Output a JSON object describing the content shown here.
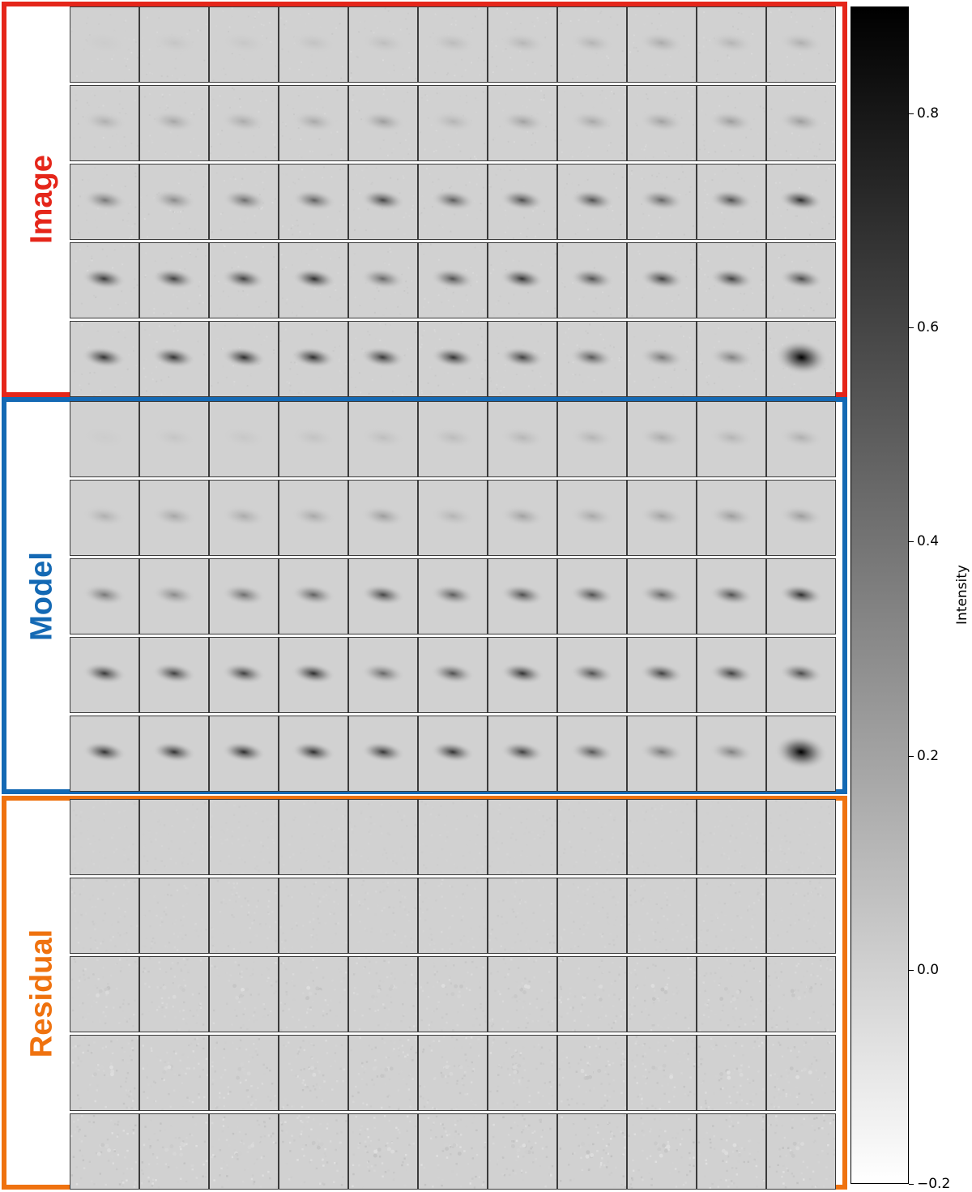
{
  "chart_data": {
    "type": "heatmap",
    "description_type": "image-grid",
    "grid": {
      "rows_per_panel": 5,
      "columns": 11
    },
    "panels": [
      {
        "name": "Image",
        "label": "Image",
        "color": "#e5261a",
        "kind": "image"
      },
      {
        "name": "Model",
        "label": "Model",
        "color": "#1469b4",
        "kind": "model"
      },
      {
        "name": "Residual",
        "label": "Residual",
        "color": "#ef720f",
        "kind": "residual"
      }
    ],
    "peak_intensity": [
      [
        0.02,
        0.05,
        0.04,
        0.06,
        0.08,
        0.09,
        0.11,
        0.12,
        0.16,
        0.12,
        0.14
      ],
      [
        0.14,
        0.18,
        0.16,
        0.17,
        0.22,
        0.12,
        0.2,
        0.17,
        0.2,
        0.22,
        0.22
      ],
      [
        0.38,
        0.3,
        0.42,
        0.48,
        0.6,
        0.5,
        0.56,
        0.55,
        0.46,
        0.55,
        0.7
      ],
      [
        0.65,
        0.62,
        0.62,
        0.7,
        0.45,
        0.55,
        0.68,
        0.55,
        0.62,
        0.62,
        0.58
      ],
      [
        0.68,
        0.68,
        0.7,
        0.7,
        0.66,
        0.68,
        0.62,
        0.52,
        0.38,
        0.34,
        0.95
      ]
    ],
    "colorbar": {
      "label": "Intensity",
      "cmap": "gray_r",
      "vmin": -0.2,
      "vmax": 0.9,
      "ticks": [
        0.8,
        0.6,
        0.4,
        0.2,
        0.0,
        -0.2
      ],
      "tick_labels": [
        "0.8",
        "0.6",
        "0.4",
        "0.2",
        "0.0",
        "−0.2"
      ]
    }
  }
}
